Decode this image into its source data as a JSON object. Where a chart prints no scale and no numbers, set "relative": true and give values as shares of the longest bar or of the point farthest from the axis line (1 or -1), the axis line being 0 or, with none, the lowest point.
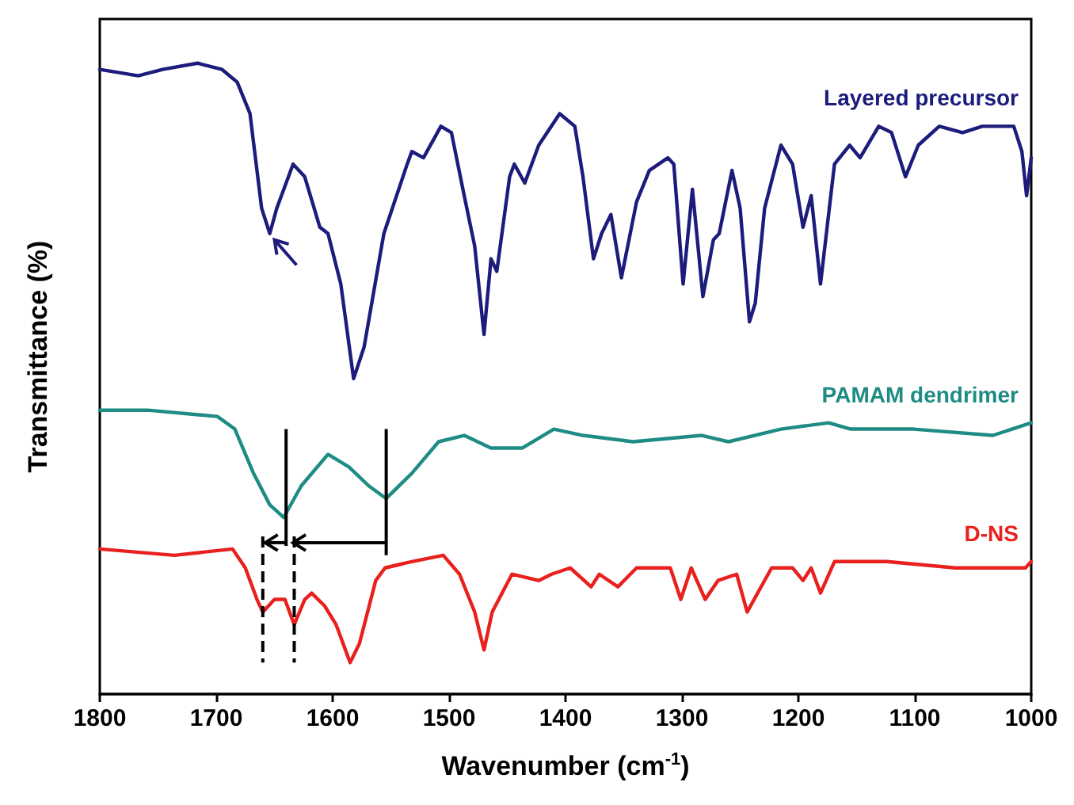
{
  "chart_data": {
    "type": "line",
    "relative": true,
    "xlabel": "Wavenumber (cm$^{-1}$)",
    "ylabel": "Transmittance (%)",
    "xlim": [
      1800,
      1000
    ],
    "xticks": [
      1800,
      1700,
      1600,
      1500,
      1400,
      1300,
      1200,
      1100,
      1000
    ],
    "grid": false,
    "marker": "none",
    "line_style": "solid",
    "series": [
      {
        "name": "Layered precursor",
        "color": "#1c1c7c",
        "x": [
          1800,
          1767,
          1746,
          1716,
          1695,
          1682,
          1671,
          1661,
          1654,
          1648,
          1634,
          1624,
          1611,
          1604,
          1593,
          1582,
          1573,
          1556,
          1536,
          1532,
          1522,
          1507,
          1498,
          1487,
          1478,
          1470,
          1464,
          1459,
          1448,
          1444,
          1435,
          1423,
          1405,
          1392,
          1385,
          1376,
          1369,
          1361,
          1352,
          1339,
          1328,
          1312,
          1307,
          1299,
          1291,
          1282,
          1273,
          1268,
          1257,
          1250,
          1242,
          1237,
          1229,
          1215,
          1205,
          1196,
          1189,
          1181,
          1169,
          1156,
          1147,
          1131,
          1120,
          1108,
          1097,
          1079,
          1059,
          1042,
          1015,
          1008,
          1004,
          1000
        ],
        "values": [
          0.99,
          0.98,
          0.99,
          1,
          0.99,
          0.97,
          0.92,
          0.77,
          0.73,
          0.77,
          0.84,
          0.82,
          0.74,
          0.73,
          0.65,
          0.5,
          0.55,
          0.73,
          0.84,
          0.86,
          0.85,
          0.9,
          0.89,
          0.79,
          0.71,
          0.57,
          0.69,
          0.67,
          0.82,
          0.84,
          0.81,
          0.87,
          0.92,
          0.9,
          0.82,
          0.69,
          0.73,
          0.76,
          0.66,
          0.78,
          0.83,
          0.85,
          0.84,
          0.65,
          0.8,
          0.63,
          0.72,
          0.73,
          0.83,
          0.77,
          0.59,
          0.62,
          0.77,
          0.87,
          0.84,
          0.74,
          0.79,
          0.65,
          0.84,
          0.87,
          0.85,
          0.9,
          0.89,
          0.82,
          0.87,
          0.9,
          0.89,
          0.9,
          0.9,
          0.86,
          0.79,
          0.85
        ]
      },
      {
        "name": "PAMAM dendrimer",
        "color": "#1e8c84",
        "x": [
          1800,
          1759,
          1699,
          1684,
          1668,
          1654,
          1642,
          1627,
          1604,
          1586,
          1569,
          1554,
          1532,
          1509,
          1487,
          1464,
          1437,
          1410,
          1385,
          1342,
          1283,
          1260,
          1215,
          1174,
          1155,
          1101,
          1033,
          1000
        ],
        "values": [
          0.45,
          0.45,
          0.44,
          0.42,
          0.35,
          0.3,
          0.28,
          0.33,
          0.38,
          0.36,
          0.33,
          0.31,
          0.35,
          0.4,
          0.41,
          0.39,
          0.39,
          0.42,
          0.41,
          0.4,
          0.41,
          0.4,
          0.42,
          0.43,
          0.42,
          0.42,
          0.41,
          0.43
        ]
      },
      {
        "name": "D-NS",
        "color": "#e8201e",
        "x": [
          1800,
          1736,
          1686,
          1675,
          1665,
          1660,
          1650,
          1641,
          1633,
          1624,
          1618,
          1607,
          1597,
          1585,
          1577,
          1563,
          1555,
          1532,
          1505,
          1491,
          1478,
          1470,
          1463,
          1446,
          1423,
          1412,
          1396,
          1378,
          1371,
          1355,
          1339,
          1310,
          1301,
          1292,
          1280,
          1269,
          1253,
          1244,
          1223,
          1205,
          1196,
          1189,
          1181,
          1169,
          1124,
          1065,
          1005,
          1000
        ],
        "values": [
          0.23,
          0.22,
          0.23,
          0.2,
          0.15,
          0.13,
          0.15,
          0.15,
          0.11,
          0.15,
          0.16,
          0.14,
          0.11,
          0.05,
          0.08,
          0.18,
          0.2,
          0.21,
          0.22,
          0.19,
          0.13,
          0.07,
          0.13,
          0.19,
          0.18,
          0.19,
          0.2,
          0.17,
          0.19,
          0.17,
          0.2,
          0.2,
          0.15,
          0.2,
          0.15,
          0.18,
          0.19,
          0.13,
          0.2,
          0.2,
          0.18,
          0.2,
          0.16,
          0.21,
          0.21,
          0.2,
          0.2,
          0.21
        ]
      }
    ]
  }
}
